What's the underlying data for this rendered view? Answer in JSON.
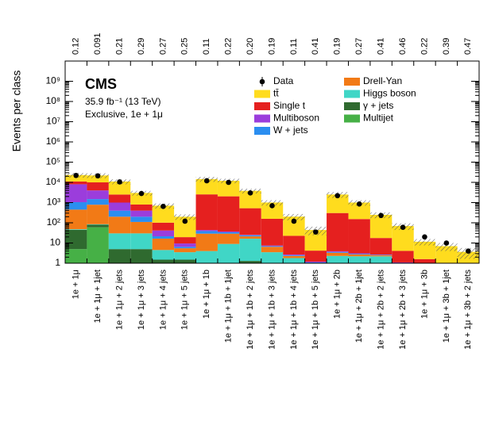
{
  "chart_data": {
    "type": "stacked_bar",
    "title": "CMS",
    "subtitle": "35.9 fb⁻¹ (13 TeV)",
    "annotation": "Exclusive, 1e + 1μ",
    "y_label": "Events per class",
    "log_scale": true,
    "categories": [
      "1e + 1μ",
      "1e + 1μ + 1jet",
      "1e + 1μ + 2 jets",
      "1e + 1μ + 3 jets",
      "1e + 1μ + 4 jets",
      "1e + 1μ + 5 jets",
      "1e + 1μ + 1b",
      "1e + 1μ + 1b + 1jet",
      "1e + 1μ + 1b + 2 jets",
      "1e + 1μ + 1b + 3 jets",
      "1e + 1μ + 1b + 4 jets",
      "1e + 1μ + 1b + 5 jets",
      "1e + 1μ + 2b",
      "1e + 1μ + 2b + 1jet",
      "1e + 1μ + 2b + 2 jets",
      "1e + 1μ + 2b + 3 jets",
      "1e + 1μ + 3b",
      "1e + 1μ + 3b + 1jet",
      "1e + 1μ + 3b + 2 jets"
    ],
    "p_values": [
      "0.12",
      "0.091",
      "0.21",
      "0.29",
      "0.27",
      "0.25",
      "0.11",
      "0.22",
      "0.20",
      "0.19",
      "0.11",
      "0.41",
      "0.19",
      "0.27",
      "0.41",
      "0.46",
      "0.22",
      "0.39",
      "0.47"
    ],
    "data": {
      "name": "Data",
      "color": "#000000",
      "values": [
        22000,
        21000,
        10500,
        2800,
        650,
        120,
        12000,
        10000,
        3000,
        700,
        120,
        35,
        2200,
        850,
        230,
        60,
        20,
        10,
        4
      ]
    },
    "series": [
      {
        "name": "tt̄",
        "color": "#ffdc1e",
        "values": [
          12000,
          12000,
          8500,
          2200,
          600,
          180,
          12000,
          10000,
          3300,
          850,
          180,
          40,
          2200,
          850,
          230,
          65,
          10,
          6,
          3
        ]
      },
      {
        "name": "Single t",
        "color": "#e5201f",
        "values": [
          3000,
          6000,
          1500,
          400,
          60,
          10,
          2500,
          2000,
          500,
          150,
          20,
          3,
          300,
          150,
          15,
          3,
          1,
          0.5,
          0.3
        ]
      },
      {
        "name": "Multiboson",
        "color": "#9b3ddc",
        "values": [
          7000,
          2500,
          600,
          200,
          20,
          3,
          5,
          3,
          1,
          0.5,
          0.2,
          0.1,
          0.3,
          0.2,
          0.1,
          0.1,
          0.05,
          0.05,
          0.05
        ]
      },
      {
        "name": "W + jets",
        "color": "#2b8ef0",
        "values": [
          600,
          700,
          200,
          90,
          5,
          1,
          10,
          5,
          3,
          0.5,
          0.2,
          0.1,
          0.3,
          0.2,
          0.1,
          0.1,
          0.05,
          0.05,
          0.05
        ]
      },
      {
        "name": "Drell-Yan",
        "color": "#f27a16",
        "values": [
          400,
          700,
          170,
          80,
          12,
          2,
          25,
          20,
          5,
          3,
          0.5,
          0.3,
          1,
          0.5,
          0.3,
          0.2,
          0.1,
          0.1,
          0.05
        ]
      },
      {
        "name": "Higgs boson",
        "color": "#40d6c6",
        "values": [
          3,
          5,
          25,
          25,
          3,
          2,
          3,
          8,
          15,
          3,
          1.5,
          0.5,
          2,
          2,
          2,
          0.5,
          0.3,
          0.2,
          0.1
        ]
      },
      {
        "name": "γ + jets",
        "color": "#2f6a2f",
        "values": [
          40,
          20,
          4,
          4,
          1,
          0.5,
          0.5,
          0.5,
          1,
          0.3,
          0.2,
          0.1,
          0.2,
          0.1,
          0.1,
          0.1,
          0.05,
          0.05,
          0.05
        ]
      },
      {
        "name": "Multijet",
        "color": "#46b046",
        "values": [
          5,
          60,
          1,
          1,
          0.5,
          1,
          0.5,
          0.5,
          0.3,
          0.2,
          0.1,
          0.1,
          0.1,
          0.1,
          0.1,
          0.1,
          0.05,
          0.05,
          0.05
        ]
      }
    ],
    "uncertainty": [
      6000,
      6000,
      3000,
      800,
      200,
      60,
      4000,
      3000,
      1000,
      300,
      70,
      20,
      800,
      300,
      80,
      25,
      4,
      3,
      2
    ],
    "ylim": [
      1,
      10000000000
    ],
    "yticks": [
      1,
      10,
      {
        "value": 100,
        "label": "10²"
      },
      {
        "value": 1000,
        "label": "10³"
      },
      {
        "value": 10000,
        "label": "10⁴"
      },
      {
        "value": 100000,
        "label": "10⁵"
      },
      {
        "value": 1000000,
        "label": "10⁶"
      },
      {
        "value": 10000000,
        "label": "10⁷"
      },
      {
        "value": 100000000,
        "label": "10⁸"
      },
      {
        "value": 1000000000,
        "label": "10⁹"
      }
    ]
  }
}
